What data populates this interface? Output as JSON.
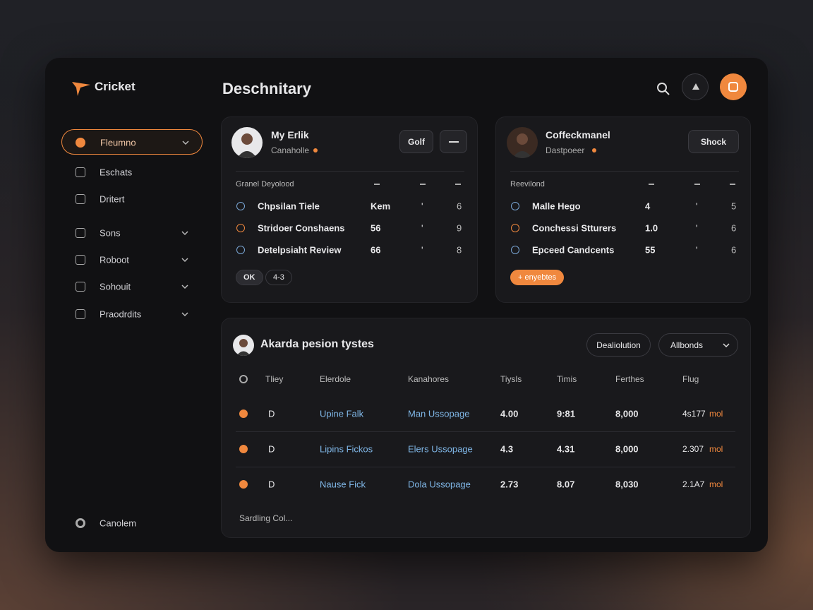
{
  "sidebar": {
    "logo": "Cricket",
    "nav": [
      {
        "label": "Fleumno",
        "active": true,
        "expandable": true
      },
      {
        "label": "Eschats",
        "active": false,
        "expandable": false
      },
      {
        "label": "Dritert",
        "active": false,
        "expandable": false
      },
      {
        "label": "Sons",
        "active": false,
        "expandable": true
      },
      {
        "label": "Roboot",
        "active": false,
        "expandable": true
      },
      {
        "label": "Sohouit",
        "active": false,
        "expandable": true
      },
      {
        "label": "Praodrdits",
        "active": false,
        "expandable": true
      }
    ],
    "footer": "Canolem"
  },
  "header": {
    "title": "Deschnitary"
  },
  "cards": [
    {
      "name": "My Erlik",
      "subtitle": "Canaholle",
      "buttons": [
        "Golf"
      ],
      "table_title": "Granel Deyolood",
      "rows": [
        [
          "Chpsilan Tiele",
          "Kem",
          "'",
          "6"
        ],
        [
          "Stridoer Conshaens",
          "56",
          "'",
          "9"
        ],
        [
          "Detelpsiaht Review",
          "66",
          "'",
          "8"
        ]
      ],
      "pills": [
        "OK",
        "4-3"
      ]
    },
    {
      "name": "Coffeckmanel",
      "subtitle": "Dastpoeer",
      "buttons": [
        "Shock"
      ],
      "table_title": "Reevilond",
      "rows": [
        [
          "Malle Hego",
          "4",
          "'",
          "5"
        ],
        [
          "Conchessi Stturers",
          "1.0",
          "'",
          "6"
        ],
        [
          "Epceed Candcents",
          "55",
          "'",
          "6"
        ]
      ],
      "pills": [
        "+ enyebtes"
      ]
    }
  ],
  "table": {
    "title": "Akarda pesion tystes",
    "filters": [
      "Dealiolution",
      "Allbonds"
    ],
    "columns": [
      "Tliey",
      "Elerdole",
      "Kanahores",
      "Tiysls",
      "Timis",
      "Ferthes",
      "Flug"
    ],
    "rows": [
      [
        "D",
        "Upine Falk",
        "Man Ussopage",
        "4.00",
        "9:81",
        "8,000",
        "4s177",
        "mol"
      ],
      [
        "D",
        "Lipins Fickos",
        "Elers Ussopage",
        "4.3",
        "4.31",
        "8,000",
        "2.307",
        "mol"
      ],
      [
        "D",
        "Nause Fick",
        "Dola Ussopage",
        "2.73",
        "8.07",
        "8,030",
        "2.1A7",
        "mol"
      ]
    ],
    "footer": "Sardling Col..."
  }
}
